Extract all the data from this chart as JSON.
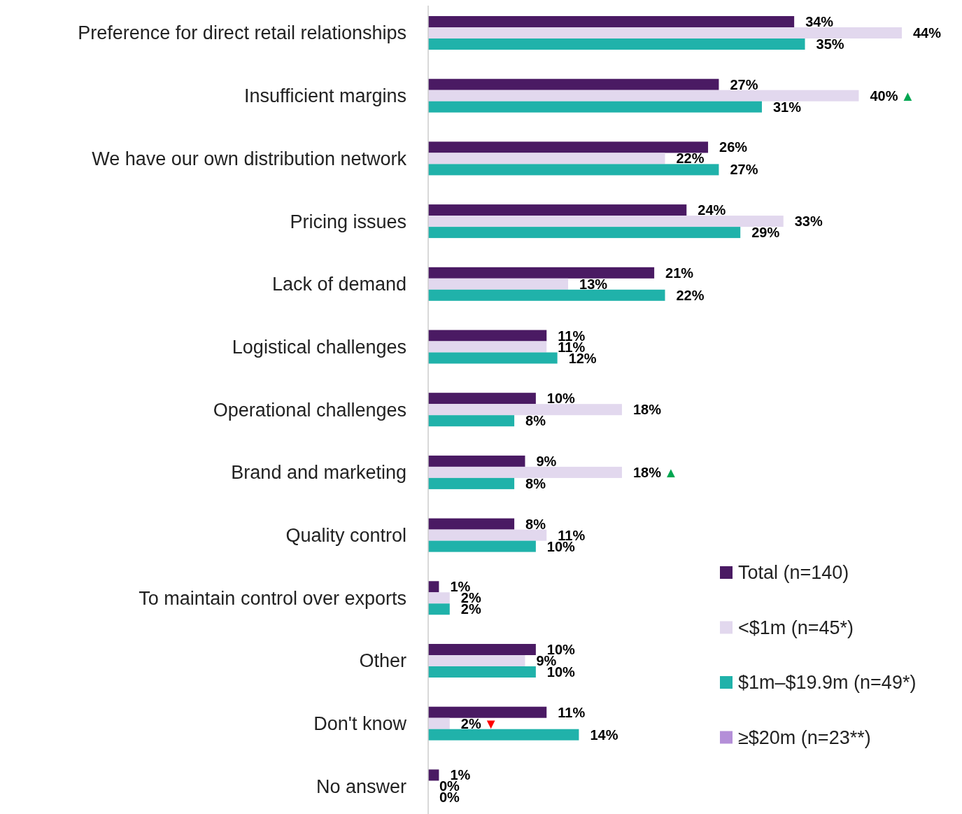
{
  "chart_data": {
    "type": "bar",
    "orientation": "horizontal",
    "legend": "right",
    "categories": [
      "Preference for direct retail relationships",
      "Insufficient margins",
      "We have our own distribution network",
      "Pricing issues",
      "Lack of demand",
      "Logistical challenges",
      "Operational challenges",
      "Brand and marketing",
      "Quality control",
      "To maintain control over exports",
      "Other",
      "Don't know",
      "No answer"
    ],
    "series": [
      {
        "name": "Total (n=140)",
        "color": "#4a1a63",
        "values": [
          34,
          27,
          26,
          24,
          21,
          11,
          10,
          9,
          8,
          1,
          10,
          11,
          1
        ],
        "value_labels": [
          "34%",
          "27%",
          "26%",
          "24%",
          "21%",
          "11%",
          "10%",
          "9%",
          "8%",
          "1%",
          "10%",
          "11%",
          "1%"
        ]
      },
      {
        "name": "<$1m (n=45*)",
        "color": "#e2d8ee",
        "values": [
          44,
          40,
          22,
          33,
          13,
          11,
          18,
          18,
          11,
          2,
          9,
          2,
          0
        ],
        "value_labels": [
          "44%",
          "40% ▲",
          "22%",
          "33%",
          "13%",
          "11%",
          "18%",
          "18% ▲",
          "11%",
          "2%",
          "9%",
          "2% ▼",
          "0%"
        ]
      },
      {
        "name": "$1m–$19.9m (n=49*)",
        "color": "#20b2aa",
        "values": [
          35,
          31,
          27,
          29,
          22,
          12,
          8,
          8,
          10,
          2,
          10,
          14,
          0
        ],
        "value_labels": [
          "35%",
          "31%",
          "27%",
          "29%",
          "22%",
          "12%",
          "8%",
          "8%",
          "10%",
          "2%",
          "10%",
          "14%",
          "0%"
        ]
      },
      {
        "name": "≥$20m (n=23**)",
        "color": "#b48fd8",
        "values": [
          null,
          null,
          null,
          null,
          null,
          null,
          null,
          null,
          null,
          null,
          null,
          null,
          null
        ]
      }
    ]
  }
}
